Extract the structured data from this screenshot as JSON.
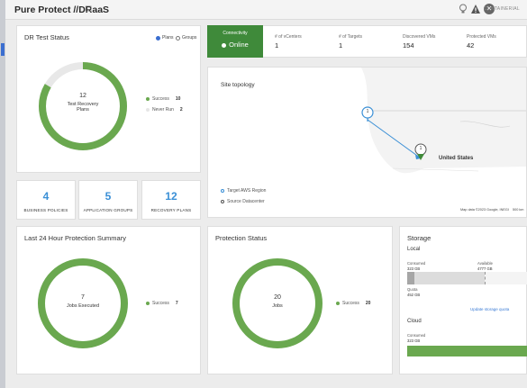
{
  "header": {
    "title": "Pure Protect //DRaaS",
    "brand": "CONTAINERIAL"
  },
  "dr_test": {
    "title": "DR Test Status",
    "radio_plans": "Plans",
    "radio_groups": "Groups",
    "center_value": "12",
    "center_label_1": "Test Recovery",
    "center_label_2": "Plans",
    "legend": [
      {
        "label": "Success",
        "value": "10",
        "color": "#6aa84f"
      },
      {
        "label": "Never Run",
        "value": "2",
        "color": "#e6e6e6"
      }
    ],
    "success": 10,
    "total": 12
  },
  "stats": [
    {
      "value": "4",
      "label": "BUSINESS POLICIES"
    },
    {
      "value": "5",
      "label": "APPLICATION GROUPS"
    },
    {
      "value": "12",
      "label": "RECOVERY PLANS"
    }
  ],
  "connectivity": {
    "label": "Connectivity",
    "value": "Online"
  },
  "metrics": [
    {
      "label": "# of vCenters",
      "value": "1"
    },
    {
      "label": "# of Targets",
      "value": "1"
    },
    {
      "label": "Discovered VMs",
      "value": "154"
    },
    {
      "label": "Protected VMs",
      "value": "42"
    }
  ],
  "topology": {
    "title": "Site topology",
    "country": "United States",
    "pin_1": "1",
    "pin_2": "1",
    "legend_target": "Target AWS Region",
    "legend_source": "Source Datacenter",
    "attribution": "Map data ©2023 Google, INEGI",
    "scale": "500 km"
  },
  "protection_summary": {
    "title": "Last 24 Hour Protection Summary",
    "center_value": "7",
    "center_label": "Jobs Executed",
    "legend_label": "Success",
    "legend_value": "7",
    "color": "#6aa84f"
  },
  "protection_status": {
    "title": "Protection Status",
    "center_value": "20",
    "center_label": "Jobs",
    "legend_label": "Success",
    "legend_value": "20",
    "color": "#6aa84f"
  },
  "storage": {
    "title": "Storage",
    "local": "Local",
    "consumed_label": "Consumed",
    "consumed_value": "323 GB",
    "available_label": "Available",
    "available_value": "4777 GB",
    "quota_label": "Quota",
    "quota_value": "452 GB",
    "update_link": "Update storage quota",
    "cloud": "Cloud",
    "cloud_consumed_label": "Consumed",
    "cloud_consumed_value": "323 GB"
  }
}
